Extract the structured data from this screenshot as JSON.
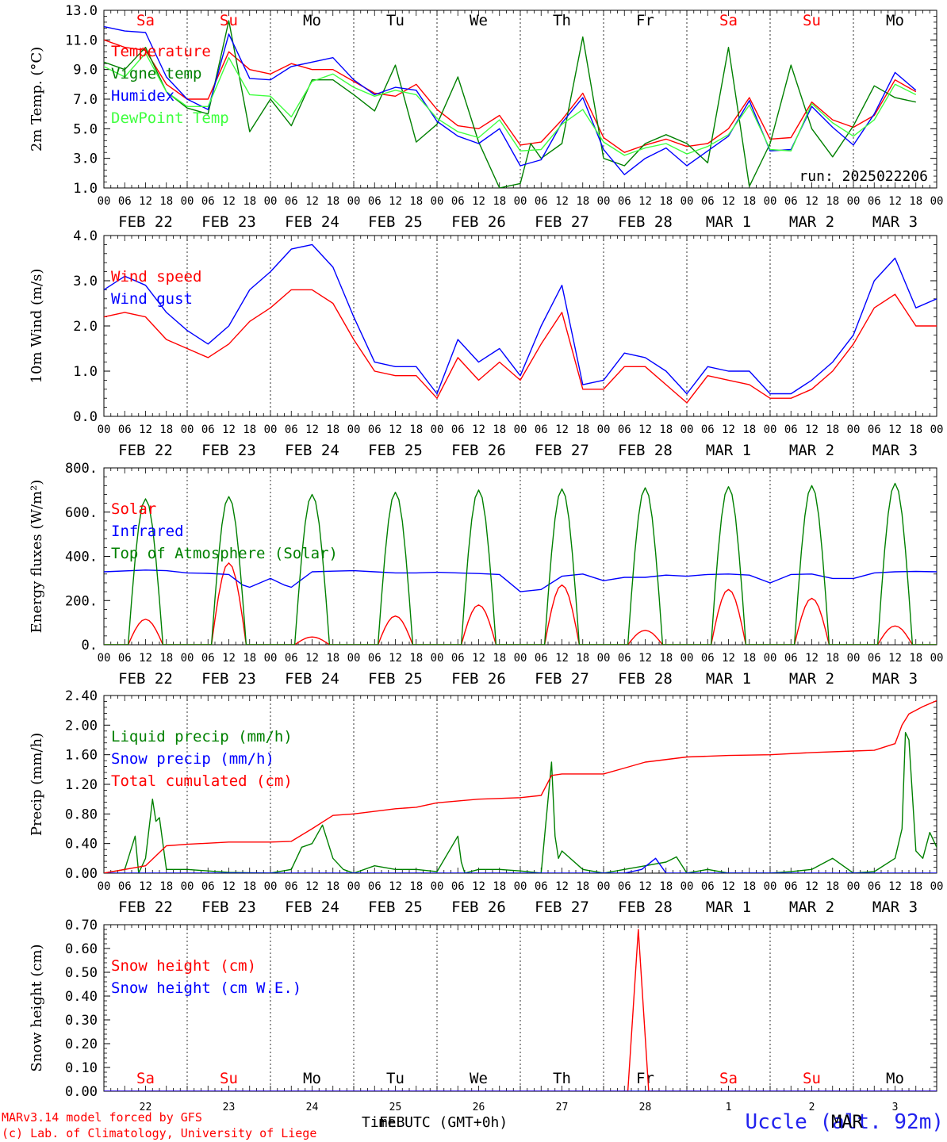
{
  "meta": {
    "run_label": "run: 2025022206",
    "credit_line1": "MARv3.14 model forced by GFS",
    "credit_line2": "(c) Lab. of Climatology, University of Liege",
    "station": "Uccle (alt. 92m)",
    "x_title": "Time UTC (GMT+0h)",
    "x_title_overlay": "FEB",
    "month_overlay": "MAR"
  },
  "days": {
    "names": [
      "Sa",
      "Su",
      "Mo",
      "Tu",
      "We",
      "Th",
      "Fr",
      "Sa",
      "Su",
      "Mo"
    ],
    "weekend": [
      true,
      true,
      false,
      false,
      false,
      false,
      false,
      true,
      true,
      false
    ],
    "date_labels": [
      "FEB 22",
      "FEB 23",
      "FEB 24",
      "FEB 25",
      "FEB 26",
      "FEB 27",
      "FEB 28",
      "MAR  1",
      "MAR  2",
      "MAR  3"
    ],
    "bottom_numbers": [
      "22",
      "23",
      "24",
      "25",
      "26",
      "27",
      "28",
      "1",
      "2",
      "3"
    ],
    "hour_ticks": [
      "00",
      "06",
      "12",
      "18"
    ],
    "end_tick": "00",
    "weekend_color": "#ff0000",
    "weekday_color": "#000000"
  },
  "chart_data": [
    {
      "type": "line",
      "ylabel": "2m Temp. (°C)",
      "ylim": [
        1.0,
        13.0
      ],
      "yticks": [
        "1.0",
        "3.0",
        "5.0",
        "7.0",
        "9.0",
        "11.0",
        "13.0"
      ],
      "ytick_values": [
        1,
        3,
        5,
        7,
        9,
        11,
        13
      ],
      "x_unit": "hours since FEB 22 00 UTC",
      "legend_placement": "left",
      "series": [
        {
          "name": "Temperature",
          "color": "#ff0000",
          "x": [
            0,
            6,
            12,
            18,
            24,
            30,
            36,
            42,
            48,
            54,
            60,
            66,
            72,
            78,
            84,
            90,
            96,
            102,
            108,
            114,
            120,
            126,
            132,
            138,
            144,
            150,
            156,
            162,
            168,
            174,
            180,
            186,
            192,
            198,
            204,
            210,
            216,
            222,
            228,
            234
          ],
          "y": [
            11.0,
            10.5,
            10.3,
            8.0,
            7.0,
            7.0,
            10.2,
            9.0,
            8.7,
            9.4,
            9.0,
            9.0,
            8.2,
            7.4,
            7.2,
            8.0,
            6.3,
            5.2,
            5.0,
            5.9,
            3.9,
            4.1,
            5.6,
            7.4,
            4.4,
            3.4,
            3.9,
            4.3,
            3.8,
            4.0,
            5.0,
            7.1,
            4.3,
            4.4,
            6.8,
            5.6,
            5.1,
            5.9,
            8.3,
            7.5
          ]
        },
        {
          "name": "Vigne temp",
          "color": "#008000",
          "x": [
            0,
            6,
            12,
            18,
            24,
            30,
            36,
            42,
            48,
            54,
            60,
            66,
            72,
            78,
            84,
            90,
            96,
            102,
            108,
            114,
            120,
            123,
            126,
            132,
            138,
            144,
            150,
            156,
            162,
            168,
            174,
            180,
            186,
            192,
            198,
            204,
            210,
            216,
            222,
            228,
            234
          ],
          "y": [
            9.5,
            9.0,
            10.5,
            7.5,
            6.4,
            6.0,
            12.3,
            4.8,
            7.0,
            5.2,
            8.3,
            8.3,
            7.3,
            6.2,
            9.3,
            4.1,
            5.3,
            8.5,
            4.1,
            1.0,
            1.3,
            4.0,
            3.0,
            4.0,
            11.2,
            3.0,
            2.5,
            4.0,
            4.6,
            4.0,
            2.7,
            10.5,
            1.1,
            4.0,
            9.3,
            5.0,
            3.1,
            5.2,
            7.9,
            7.1,
            6.8
          ]
        },
        {
          "name": "Humidex",
          "color": "#0000ff",
          "x": [
            0,
            6,
            12,
            18,
            24,
            30,
            36,
            42,
            48,
            54,
            60,
            66,
            72,
            78,
            84,
            90,
            96,
            102,
            108,
            114,
            120,
            126,
            132,
            138,
            144,
            150,
            156,
            162,
            168,
            174,
            180,
            186,
            192,
            198,
            204,
            210,
            216,
            222,
            228,
            234
          ],
          "y": [
            11.9,
            11.6,
            11.5,
            8.5,
            7.0,
            6.3,
            11.4,
            8.4,
            8.3,
            9.2,
            9.5,
            9.8,
            8.3,
            7.3,
            7.8,
            7.6,
            5.5,
            4.5,
            4.0,
            5.0,
            2.5,
            2.9,
            5.4,
            7.1,
            3.6,
            1.9,
            3.0,
            3.7,
            2.5,
            3.5,
            4.5,
            6.9,
            3.5,
            3.6,
            6.5,
            5.1,
            3.9,
            6.0,
            8.8,
            7.6
          ]
        },
        {
          "name": "DewPoint Temp",
          "color": "#40ff40",
          "x": [
            0,
            6,
            12,
            18,
            24,
            30,
            36,
            42,
            48,
            54,
            60,
            66,
            72,
            78,
            84,
            90,
            96,
            102,
            108,
            114,
            120,
            126,
            132,
            138,
            144,
            150,
            156,
            162,
            168,
            174,
            180,
            186,
            192,
            198,
            204,
            210,
            216,
            222,
            228,
            234
          ],
          "y": [
            9.2,
            8.5,
            10.1,
            7.5,
            6.5,
            6.5,
            9.8,
            7.3,
            7.2,
            5.8,
            8.2,
            8.7,
            7.8,
            7.2,
            7.6,
            7.3,
            5.7,
            4.8,
            4.4,
            5.6,
            3.5,
            3.6,
            5.3,
            6.3,
            4.1,
            3.2,
            3.7,
            4.0,
            3.3,
            3.8,
            4.6,
            6.6,
            3.6,
            3.5,
            6.7,
            5.4,
            4.5,
            5.6,
            8.0,
            7.3
          ]
        }
      ]
    },
    {
      "type": "line",
      "ylabel": "10m Wind (m/s)",
      "ylim": [
        0.0,
        4.0
      ],
      "yticks": [
        "0.0",
        "1.0",
        "2.0",
        "3.0",
        "4.0"
      ],
      "ytick_values": [
        0,
        1,
        2,
        3,
        4
      ],
      "x_unit": "hours since FEB 22 00 UTC",
      "legend_placement": "left",
      "series": [
        {
          "name": "Wind speed",
          "color": "#ff0000",
          "x": [
            0,
            6,
            12,
            18,
            24,
            30,
            36,
            42,
            48,
            54,
            60,
            66,
            72,
            78,
            84,
            90,
            96,
            102,
            108,
            114,
            120,
            126,
            132,
            138,
            144,
            150,
            156,
            162,
            168,
            174,
            180,
            186,
            192,
            198,
            204,
            210,
            216,
            222,
            228,
            234,
            240
          ],
          "y": [
            2.2,
            2.3,
            2.2,
            1.7,
            1.5,
            1.3,
            1.6,
            2.1,
            2.4,
            2.8,
            2.8,
            2.5,
            1.7,
            1.0,
            0.9,
            0.9,
            0.4,
            1.3,
            0.8,
            1.2,
            0.8,
            1.6,
            2.3,
            0.6,
            0.6,
            1.1,
            1.1,
            0.7,
            0.3,
            0.9,
            0.8,
            0.7,
            0.4,
            0.4,
            0.6,
            1.0,
            1.6,
            2.4,
            2.7,
            2.0,
            2.0
          ]
        },
        {
          "name": "Wind gust",
          "color": "#0000ff",
          "x": [
            0,
            6,
            12,
            18,
            24,
            30,
            36,
            42,
            48,
            54,
            60,
            66,
            72,
            78,
            84,
            90,
            96,
            102,
            108,
            114,
            120,
            126,
            132,
            138,
            144,
            150,
            156,
            162,
            168,
            174,
            180,
            186,
            192,
            198,
            204,
            210,
            216,
            222,
            228,
            234,
            240
          ],
          "y": [
            2.8,
            3.1,
            2.9,
            2.3,
            1.9,
            1.6,
            2.0,
            2.8,
            3.2,
            3.7,
            3.8,
            3.3,
            2.2,
            1.2,
            1.1,
            1.1,
            0.5,
            1.7,
            1.2,
            1.5,
            0.9,
            2.0,
            2.9,
            0.7,
            0.8,
            1.4,
            1.3,
            1.0,
            0.5,
            1.1,
            1.0,
            1.0,
            0.5,
            0.5,
            0.8,
            1.2,
            1.8,
            3.0,
            3.5,
            2.4,
            2.6
          ]
        }
      ]
    },
    {
      "type": "line",
      "ylabel": "Energy fluxes (W/m²)",
      "ylim": [
        0,
        800
      ],
      "yticks": [
        "0.",
        "200.",
        "400.",
        "600.",
        "800."
      ],
      "ytick_values": [
        0,
        200,
        400,
        600,
        800
      ],
      "x_unit": "hours since FEB 22 00 UTC",
      "legend_placement": "left",
      "series": [
        {
          "name": "Solar",
          "color": "#ff0000",
          "daily_peak": [
            115,
            370,
            35,
            130,
            180,
            270,
            65,
            250,
            210,
            85
          ],
          "daylight_hours": [
            7,
            17
          ]
        },
        {
          "name": "Infrared",
          "color": "#0000ff",
          "x": [
            0,
            12,
            18,
            24,
            30,
            36,
            40,
            42,
            48,
            52,
            54,
            60,
            66,
            72,
            78,
            84,
            90,
            96,
            102,
            108,
            114,
            120,
            126,
            132,
            138,
            144,
            150,
            156,
            162,
            168,
            174,
            180,
            186,
            192,
            198,
            204,
            210,
            216,
            222,
            228,
            234,
            240
          ],
          "y": [
            330,
            338,
            335,
            325,
            323,
            318,
            270,
            260,
            300,
            270,
            260,
            330,
            333,
            335,
            330,
            325,
            325,
            328,
            325,
            322,
            318,
            240,
            250,
            310,
            320,
            290,
            305,
            305,
            315,
            310,
            318,
            320,
            315,
            280,
            318,
            320,
            300,
            300,
            325,
            330,
            332,
            330
          ]
        },
        {
          "name": "Top of Atmosphere (Solar)",
          "color": "#008000",
          "daily_peak": [
            660,
            670,
            680,
            690,
            700,
            705,
            710,
            715,
            720,
            730
          ],
          "daylight_hours": [
            7,
            17
          ]
        }
      ]
    },
    {
      "type": "line",
      "ylabel": "Precip (mm/h)",
      "ylim": [
        0.0,
        2.4
      ],
      "yticks": [
        "0.00",
        "0.40",
        "0.80",
        "1.20",
        "1.60",
        "2.00",
        "2.40"
      ],
      "ytick_values": [
        0,
        0.4,
        0.8,
        1.2,
        1.6,
        2.0,
        2.4
      ],
      "x_unit": "hours since FEB 22 00 UTC",
      "legend_placement": "left",
      "series": [
        {
          "name": "Liquid precip (mm/h)",
          "color": "#008000",
          "x": [
            0,
            6,
            9,
            10,
            12,
            14,
            15,
            16,
            17,
            18,
            24,
            30,
            36,
            48,
            54,
            57,
            60,
            63,
            66,
            69,
            72,
            78,
            84,
            90,
            96,
            102,
            103,
            104,
            108,
            114,
            120,
            126,
            129,
            130,
            131,
            132,
            138,
            144,
            150,
            156,
            162,
            165,
            168,
            174,
            180,
            186,
            192,
            198,
            204,
            210,
            216,
            222,
            228,
            230,
            231,
            232,
            234,
            236,
            238,
            240
          ],
          "y": [
            0,
            0.05,
            0.5,
            0.0,
            0.2,
            1.0,
            0.7,
            0.75,
            0.4,
            0.05,
            0.05,
            0.03,
            0.01,
            0.0,
            0.05,
            0.35,
            0.4,
            0.65,
            0.2,
            0.05,
            0.0,
            0.1,
            0.05,
            0.05,
            0.02,
            0.5,
            0.15,
            0.0,
            0.05,
            0.05,
            0.03,
            0.0,
            1.5,
            0.5,
            0.2,
            0.3,
            0.05,
            0.0,
            0.05,
            0.1,
            0.15,
            0.22,
            0.0,
            0.05,
            0.0,
            0.0,
            0.0,
            0.02,
            0.05,
            0.2,
            0.0,
            0.02,
            0.2,
            0.6,
            1.9,
            1.8,
            0.3,
            0.2,
            0.55,
            0.35
          ]
        },
        {
          "name": "Snow precip (mm/h)",
          "color": "#0000ff",
          "x": [
            0,
            150,
            155,
            159,
            162,
            170,
            240
          ],
          "y": [
            0,
            0,
            0.05,
            0.2,
            0,
            0,
            0
          ]
        },
        {
          "name": "Total cumulated (cm)",
          "color": "#ff0000",
          "x": [
            0,
            12,
            18,
            24,
            36,
            48,
            54,
            60,
            66,
            72,
            84,
            90,
            96,
            108,
            120,
            126,
            129,
            132,
            144,
            150,
            156,
            168,
            180,
            192,
            204,
            216,
            222,
            228,
            230,
            232,
            236,
            240
          ],
          "y": [
            0,
            0.1,
            0.37,
            0.39,
            0.42,
            0.42,
            0.43,
            0.6,
            0.78,
            0.8,
            0.87,
            0.89,
            0.95,
            1.0,
            1.02,
            1.05,
            1.32,
            1.34,
            1.34,
            1.42,
            1.5,
            1.57,
            1.59,
            1.6,
            1.63,
            1.65,
            1.66,
            1.75,
            2.0,
            2.15,
            2.25,
            2.33
          ]
        }
      ]
    },
    {
      "type": "line",
      "ylabel": "Snow height (cm)",
      "ylim": [
        0.0,
        0.7
      ],
      "yticks": [
        "0.00",
        "0.10",
        "0.20",
        "0.30",
        "0.40",
        "0.50",
        "0.60",
        "0.70"
      ],
      "ytick_values": [
        0,
        0.1,
        0.2,
        0.3,
        0.4,
        0.5,
        0.6,
        0.7
      ],
      "x_unit": "hours since FEB 22 00 UTC",
      "legend_placement": "left",
      "series": [
        {
          "name": "Snow height (cm)",
          "color": "#ff0000",
          "x": [
            0,
            151,
            154,
            157,
            240
          ],
          "y": [
            0,
            0,
            0.68,
            0,
            0
          ]
        },
        {
          "name": "Snow height (cm W.E.)",
          "color": "#0000ff",
          "x": [
            0,
            240
          ],
          "y": [
            0,
            0
          ]
        }
      ]
    }
  ]
}
